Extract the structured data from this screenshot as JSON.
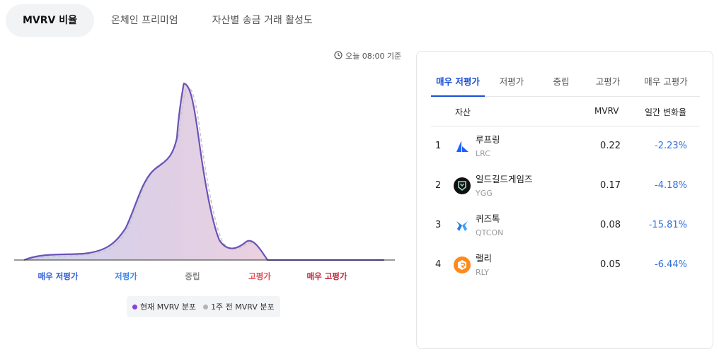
{
  "top_tabs": [
    "MVRV 비율",
    "온체인 프리미엄",
    "자산별 송금 거래 활성도"
  ],
  "timestamp": "오늘 08:00 기준",
  "chart": {
    "axis_labels": [
      "매우 저평가",
      "저평가",
      "중립",
      "고평가",
      "매우 고평가"
    ],
    "axis_colors": [
      "#2a5bd7",
      "#3d86ea",
      "#8a8a8a",
      "#e0505a",
      "#c0203a"
    ],
    "legend": {
      "current_label": "현재 MVRV 분포",
      "previous_label": "1주 전 MVRV 분포",
      "current_color": "#8a3fe0",
      "previous_color": "#b4b4b8"
    }
  },
  "panel": {
    "tabs": [
      "매우 저평가",
      "저평가",
      "중립",
      "고평가",
      "매우 고평가"
    ],
    "headers": {
      "asset": "자산",
      "mvrv": "MVRV",
      "change": "일간 변화율"
    },
    "rows": [
      {
        "rank": "1",
        "name": "루프링",
        "symbol": "LRC",
        "mvrv": "0.22",
        "change": "-2.23%",
        "icon": "loopring-icon"
      },
      {
        "rank": "2",
        "name": "일드길드게임즈",
        "symbol": "YGG",
        "mvrv": "0.17",
        "change": "-4.18%",
        "icon": "ygg-icon"
      },
      {
        "rank": "3",
        "name": "퀴즈톡",
        "symbol": "QTCON",
        "mvrv": "0.08",
        "change": "-15.81%",
        "icon": "quiztok-icon"
      },
      {
        "rank": "4",
        "name": "랠리",
        "symbol": "RLY",
        "mvrv": "0.05",
        "change": "-6.44%",
        "icon": "rally-icon"
      }
    ]
  }
}
